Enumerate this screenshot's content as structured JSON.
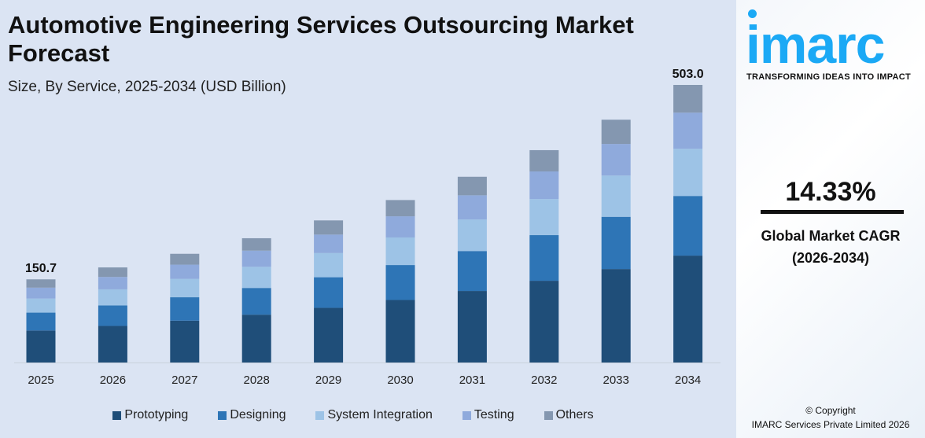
{
  "header": {
    "title": "Automotive Engineering Services Outsourcing Market Forecast",
    "subtitle": "Size, By Service, 2025-2034 (USD Billion)"
  },
  "brand": {
    "logo": "imarc",
    "tagline": "TRANSFORMING IDEAS INTO IMPACT",
    "color": "#1ba9f5"
  },
  "cagr": {
    "value": "14.33%",
    "label": "Global Market CAGR",
    "period": "(2026-2034)"
  },
  "footer": {
    "copyright": "© Copyright",
    "company": "IMARC Services Private Limited 2026"
  },
  "chart_data": {
    "type": "bar",
    "stacked": true,
    "title": "Automotive Engineering Services Outsourcing Market Forecast",
    "subtitle": "Size, By Service, 2025-2034 (USD Billion)",
    "categories": [
      "2025",
      "2026",
      "2027",
      "2028",
      "2029",
      "2030",
      "2031",
      "2032",
      "2033",
      "2034"
    ],
    "series": [
      {
        "name": "Prototyping",
        "color": "#1f4e79",
        "values": [
          58.0,
          66.3,
          75.8,
          86.7,
          99.1,
          113.3,
          129.6,
          148.1,
          169.4,
          193.7
        ]
      },
      {
        "name": "Designing",
        "color": "#2e75b6",
        "values": [
          32.4,
          37.0,
          42.4,
          48.4,
          55.4,
          63.3,
          72.4,
          82.7,
          94.6,
          108.1
        ]
      },
      {
        "name": "System Integration",
        "color": "#9dc3e6",
        "values": [
          25.6,
          29.3,
          33.5,
          38.3,
          43.8,
          50.0,
          57.2,
          65.4,
          74.8,
          85.5
        ]
      },
      {
        "name": "Testing",
        "color": "#8faadc",
        "values": [
          19.6,
          22.4,
          25.6,
          29.3,
          33.5,
          38.3,
          43.8,
          50.0,
          57.2,
          65.4
        ]
      },
      {
        "name": "Others",
        "color": "#8497b0",
        "values": [
          15.1,
          17.3,
          19.7,
          22.5,
          25.7,
          29.5,
          33.6,
          38.6,
          44.0,
          50.3
        ]
      }
    ],
    "data_labels": [
      {
        "category": "2025",
        "text": "150.7"
      },
      {
        "category": "2034",
        "text": "503.0"
      }
    ],
    "ylim": [
      0,
      503
    ],
    "grid": false,
    "legend": "bottom"
  }
}
